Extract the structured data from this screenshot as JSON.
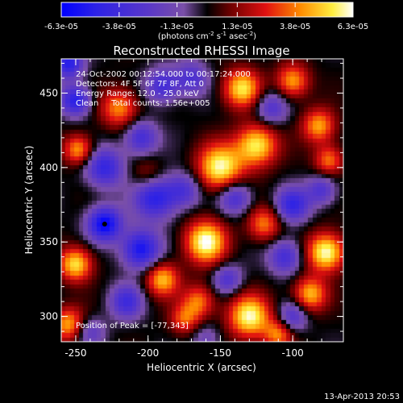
{
  "chart_data": {
    "type": "heatmap",
    "title": "Reconstructed RHESSI Image",
    "xlabel": "Heliocentric X (arcsec)",
    "ylabel": "Heliocentric Y (arcsec)",
    "xlim": [
      -260,
      -65
    ],
    "ylim": [
      283,
      473
    ],
    "x_ticks": [
      -250,
      -200,
      -150,
      -100
    ],
    "y_ticks": [
      300,
      350,
      400,
      450
    ],
    "colorbar": {
      "ticks": [
        "-6.3e-05",
        "-3.8e-05",
        "-1.3e-05",
        "1.3e-05",
        "3.8e-05",
        "6.3e-05"
      ],
      "tick_values": [
        -6.3e-05,
        -3.8e-05,
        -1.3e-05,
        1.3e-05,
        3.8e-05,
        6.3e-05
      ],
      "range": [
        -6.3e-05,
        6.3e-05
      ],
      "unit_parts": [
        "(photons cm",
        "-2",
        " s",
        "-1",
        " asec",
        "-2",
        ")"
      ]
    },
    "annotations": [
      "24-Oct-2002 00:12:54.000 to 00:17:24.000",
      "Detectors: 4F 5F 6F 7F 8F, Att 0",
      "Energy Range: 12.0 - 25.0 keV",
      "Clean     Total counts: 1.56e+005"
    ],
    "peak_label": "Position of Peak = [-77,343]",
    "peak": [
      -77,
      343
    ],
    "blobs": [
      {
        "x": -160,
        "y": 350,
        "v": 1.0,
        "s": 10
      },
      {
        "x": -150,
        "y": 400,
        "v": 0.95,
        "s": 11
      },
      {
        "x": -125,
        "y": 415,
        "v": 0.9,
        "s": 10
      },
      {
        "x": -135,
        "y": 453,
        "v": 0.85,
        "s": 9
      },
      {
        "x": -100,
        "y": 458,
        "v": 0.7,
        "s": 8
      },
      {
        "x": -82,
        "y": 428,
        "v": 0.7,
        "s": 8
      },
      {
        "x": -75,
        "y": 405,
        "v": 0.6,
        "s": 7
      },
      {
        "x": -120,
        "y": 362,
        "v": 0.6,
        "s": 8
      },
      {
        "x": -77,
        "y": 343,
        "v": 1.0,
        "s": 9
      },
      {
        "x": -88,
        "y": 315,
        "v": 0.75,
        "s": 8
      },
      {
        "x": -130,
        "y": 300,
        "v": 0.95,
        "s": 10
      },
      {
        "x": -165,
        "y": 310,
        "v": 0.6,
        "s": 8
      },
      {
        "x": -190,
        "y": 325,
        "v": 0.75,
        "s": 8
      },
      {
        "x": -175,
        "y": 298,
        "v": 0.5,
        "s": 7
      },
      {
        "x": -250,
        "y": 335,
        "v": 0.85,
        "s": 8
      },
      {
        "x": -255,
        "y": 295,
        "v": 0.7,
        "s": 8
      },
      {
        "x": -220,
        "y": 440,
        "v": 0.65,
        "s": 9
      },
      {
        "x": -248,
        "y": 412,
        "v": 0.7,
        "s": 7
      },
      {
        "x": -200,
        "y": 395,
        "v": 0.3,
        "s": 8
      },
      {
        "x": -110,
        "y": 288,
        "v": 0.6,
        "s": 7
      },
      {
        "x": -230,
        "y": 362,
        "v": -1.0,
        "s": 8
      },
      {
        "x": -205,
        "y": 345,
        "v": -0.9,
        "s": 9
      },
      {
        "x": -195,
        "y": 380,
        "v": -0.8,
        "s": 10
      },
      {
        "x": -230,
        "y": 400,
        "v": -0.7,
        "s": 9
      },
      {
        "x": -205,
        "y": 420,
        "v": -0.6,
        "s": 8
      },
      {
        "x": -190,
        "y": 455,
        "v": -0.6,
        "s": 8
      },
      {
        "x": -250,
        "y": 445,
        "v": -0.8,
        "s": 7
      },
      {
        "x": -255,
        "y": 470,
        "v": -0.8,
        "s": 7
      },
      {
        "x": -170,
        "y": 460,
        "v": -0.5,
        "s": 8
      },
      {
        "x": -215,
        "y": 310,
        "v": -0.6,
        "s": 8
      },
      {
        "x": -175,
        "y": 385,
        "v": -0.5,
        "s": 8
      },
      {
        "x": -140,
        "y": 380,
        "v": -0.6,
        "s": 8
      },
      {
        "x": -100,
        "y": 375,
        "v": -0.7,
        "s": 8
      },
      {
        "x": -80,
        "y": 385,
        "v": -0.5,
        "s": 7
      },
      {
        "x": -105,
        "y": 340,
        "v": -0.6,
        "s": 8
      },
      {
        "x": -145,
        "y": 325,
        "v": -0.5,
        "s": 7
      },
      {
        "x": -100,
        "y": 300,
        "v": -0.5,
        "s": 7
      },
      {
        "x": -115,
        "y": 440,
        "v": -0.5,
        "s": 8
      },
      {
        "x": -160,
        "y": 285,
        "v": -0.3,
        "s": 7
      },
      {
        "x": -240,
        "y": 290,
        "v": -0.4,
        "s": 7
      }
    ]
  },
  "footer": {
    "timestamp": "13-Apr-2013 20:53"
  }
}
